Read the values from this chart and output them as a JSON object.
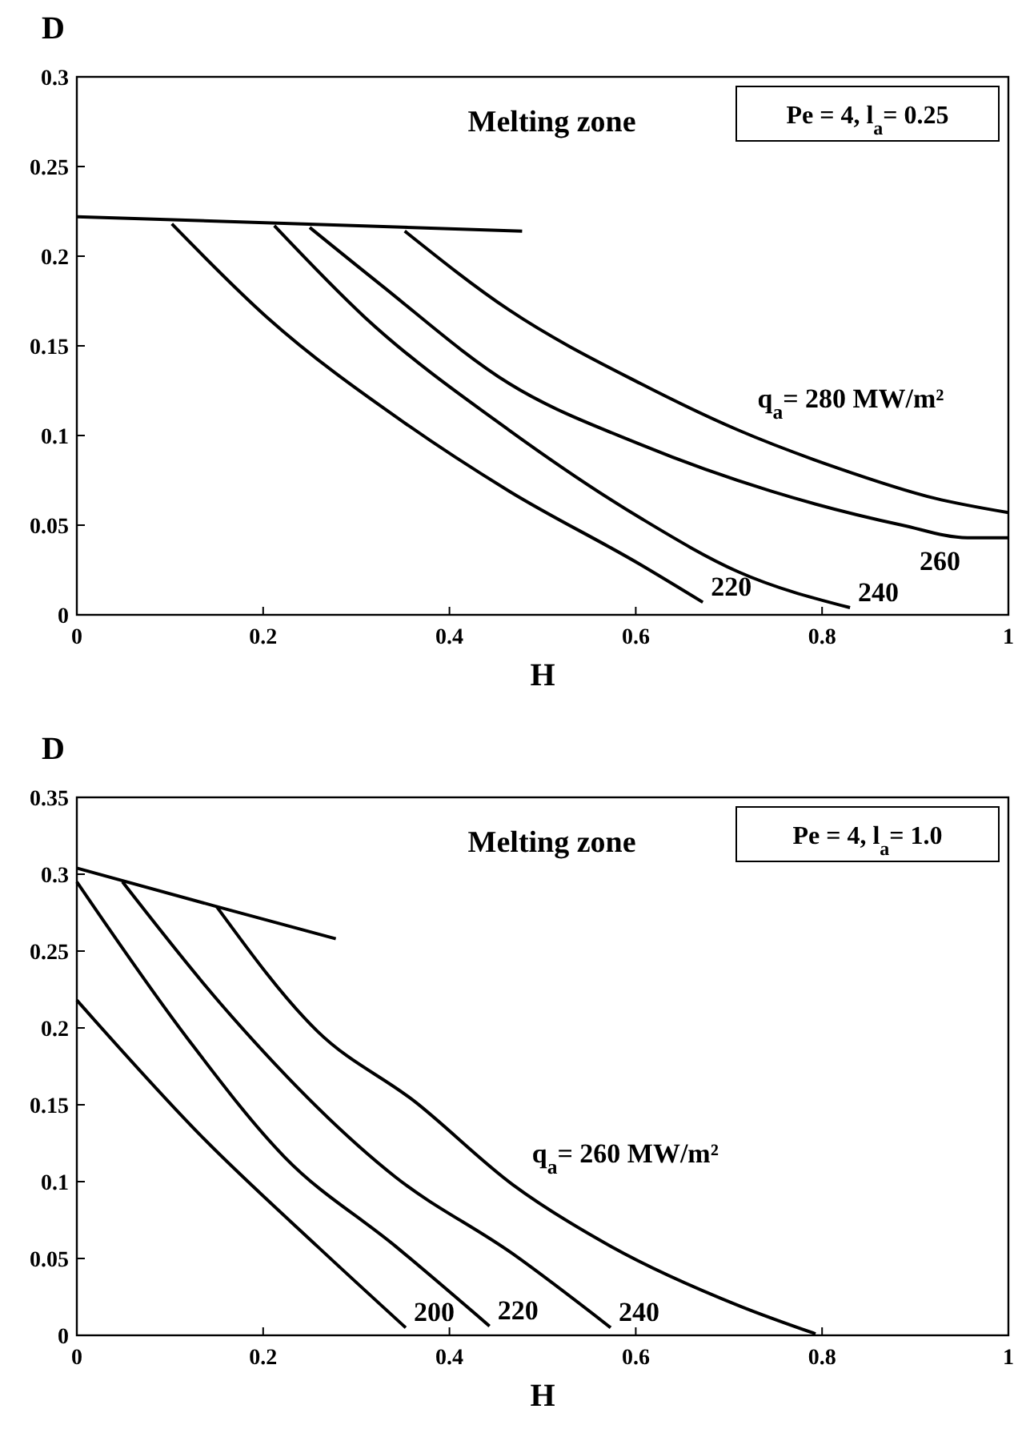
{
  "chart_data": [
    {
      "type": "line",
      "xlabel": "H",
      "ylabel": "D",
      "xlim": [
        0,
        1
      ],
      "ylim": [
        0,
        0.3
      ],
      "xticks": [
        0,
        0.2,
        0.4,
        0.6,
        0.8,
        1
      ],
      "yticks": [
        0,
        0.05,
        0.1,
        0.15,
        0.2,
        0.25,
        0.3
      ],
      "marker": "none",
      "line_style": "solid",
      "series": [
        {
          "color": "#000000",
          "x": [
            0,
            0.478
          ],
          "values": [
            0.222,
            0.214
          ]
        },
        {
          "name": "220",
          "color": "#000000",
          "x": [
            0.102,
            0.204,
            0.352,
            0.464,
            0.605,
            0.672
          ],
          "values": [
            0.218,
            0.166,
            0.107,
            0.069,
            0.028,
            0.007
          ]
        },
        {
          "name": "240",
          "color": "#000000",
          "x": [
            0.212,
            0.309,
            0.464,
            0.605,
            0.71,
            0.83
          ],
          "values": [
            0.217,
            0.166,
            0.103,
            0.054,
            0.024,
            0.004
          ]
        },
        {
          "name": "260",
          "color": "#000000",
          "x": [
            0.25,
            0.324,
            0.464,
            0.605,
            0.745,
            0.886,
            0.956,
            1
          ],
          "values": [
            0.216,
            0.185,
            0.129,
            0.095,
            0.069,
            0.05,
            0.043,
            0.043
          ]
        },
        {
          "name": "q$_{a}$= 280 MW/m²",
          "color": "#000000",
          "x": [
            0.352,
            0.464,
            0.605,
            0.71,
            0.816,
            0.921,
            1
          ],
          "values": [
            0.214,
            0.17,
            0.129,
            0.103,
            0.082,
            0.065,
            0.057
          ]
        }
      ],
      "annotations": [
        "Melting zone",
        "Pe = 4,  l$_{a}$= 0.25"
      ]
    },
    {
      "type": "line",
      "xlabel": "H",
      "ylabel": "D",
      "xlim": [
        0,
        1
      ],
      "ylim": [
        0,
        0.35
      ],
      "xticks": [
        0,
        0.2,
        0.4,
        0.6,
        0.8,
        1
      ],
      "yticks": [
        0,
        0.05,
        0.1,
        0.15,
        0.2,
        0.25,
        0.3,
        0.35
      ],
      "marker": "none",
      "line_style": "solid",
      "series": [
        {
          "color": "#000000",
          "x": [
            0,
            0.15,
            0.278
          ],
          "values": [
            0.304,
            0.279,
            0.258
          ]
        },
        {
          "name": "200",
          "color": "#000000",
          "x": [
            0,
            0.133,
            0.258,
            0.353
          ],
          "values": [
            0.218,
            0.13,
            0.058,
            0.005
          ]
        },
        {
          "name": "220",
          "color": "#000000",
          "x": [
            0,
            0.119,
            0.223,
            0.342,
            0.443
          ],
          "values": [
            0.295,
            0.193,
            0.116,
            0.058,
            0.006
          ]
        },
        {
          "name": "240",
          "color": "#000000",
          "x": [
            0.049,
            0.154,
            0.342,
            0.468,
            0.573
          ],
          "values": [
            0.295,
            0.216,
            0.103,
            0.053,
            0.005
          ]
        },
        {
          "name": "q$_{a}$= 260 MW/m²",
          "color": "#000000",
          "x": [
            0.15,
            0.258,
            0.363,
            0.468,
            0.573,
            0.712,
            0.793
          ],
          "values": [
            0.279,
            0.198,
            0.152,
            0.098,
            0.058,
            0.019,
            0.001
          ]
        }
      ],
      "annotations": [
        "Melting zone",
        "Pe = 4,  l$_{a}$= 1.0"
      ]
    }
  ]
}
